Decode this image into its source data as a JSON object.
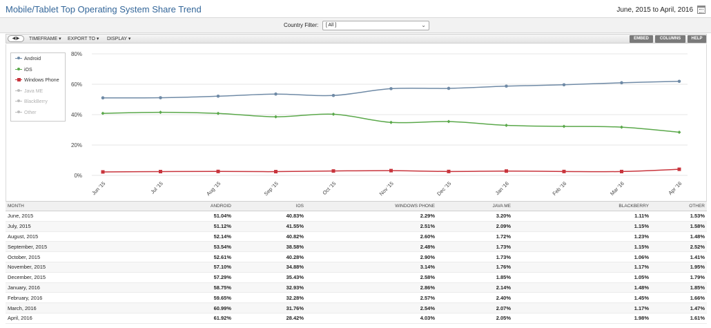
{
  "header": {
    "title": "Mobile/Tablet Top Operating System Share Trend",
    "date_range": "June, 2015 to April, 2016"
  },
  "filter": {
    "label": "Country Filter:",
    "value": "[ All ]"
  },
  "toolbar": {
    "nav": "◀|▶",
    "timeframe": "TIMEFRAME ▾",
    "export": "EXPORT TO ▾",
    "display": "DISPLAY ▾",
    "embed": "EMBED",
    "columns": "COLUMNS",
    "help": "HELP"
  },
  "colors": {
    "android": "#6f8aa6",
    "ios": "#5aa84a",
    "windows_phone": "#c8343c",
    "disabled": "#bdbdbd",
    "grid": "#e6e6e6"
  },
  "chart_data": {
    "type": "line",
    "title": "",
    "xlabel": "",
    "ylabel": "",
    "ylim": [
      0,
      80
    ],
    "yticks": [
      "0%",
      "20%",
      "40%",
      "60%",
      "80%"
    ],
    "categories": [
      "Jun '15",
      "Jul '15",
      "Aug '15",
      "Sep '15",
      "Oct '15",
      "Nov '15",
      "Dec '15",
      "Jan '16",
      "Feb '16",
      "Mar '16",
      "Apr '16"
    ],
    "series": [
      {
        "name": "Android",
        "color": "#6f8aa6",
        "marker": "circle",
        "visible": true,
        "values": [
          51.04,
          51.12,
          52.14,
          53.54,
          52.61,
          57.1,
          57.29,
          58.75,
          59.65,
          60.99,
          61.92
        ]
      },
      {
        "name": "iOS",
        "color": "#5aa84a",
        "marker": "diamond",
        "visible": true,
        "values": [
          40.83,
          41.55,
          40.82,
          38.58,
          40.28,
          34.88,
          35.43,
          32.93,
          32.28,
          31.76,
          28.42
        ]
      },
      {
        "name": "Windows Phone",
        "color": "#c8343c",
        "marker": "square",
        "visible": true,
        "values": [
          2.29,
          2.51,
          2.6,
          2.48,
          2.9,
          3.14,
          2.58,
          2.86,
          2.57,
          2.54,
          4.03
        ]
      },
      {
        "name": "Java ME",
        "color": "#bdbdbd",
        "marker": "diamond",
        "visible": false,
        "values": [
          3.2,
          2.09,
          1.72,
          1.73,
          1.73,
          1.76,
          1.85,
          2.14,
          2.4,
          2.07,
          2.05
        ]
      },
      {
        "name": "BlackBerry",
        "color": "#bdbdbd",
        "marker": "diamond",
        "visible": false,
        "values": [
          1.11,
          1.15,
          1.23,
          1.15,
          1.06,
          1.17,
          1.05,
          1.48,
          1.45,
          1.17,
          1.98
        ]
      },
      {
        "name": "Other",
        "color": "#bdbdbd",
        "marker": "circle",
        "visible": false,
        "values": [
          1.53,
          1.58,
          1.48,
          2.52,
          1.41,
          1.95,
          1.79,
          1.85,
          1.66,
          1.47,
          1.61
        ]
      }
    ],
    "legend": "top-left",
    "grid": true
  },
  "table": {
    "columns": [
      "MONTH",
      "ANDROID",
      "IOS",
      "WINDOWS PHONE",
      "JAVA ME",
      "BLACKBERRY",
      "OTHER"
    ],
    "rows": [
      [
        "June, 2015",
        "51.04%",
        "40.83%",
        "2.29%",
        "3.20%",
        "1.11%",
        "1.53%"
      ],
      [
        "July, 2015",
        "51.12%",
        "41.55%",
        "2.51%",
        "2.09%",
        "1.15%",
        "1.58%"
      ],
      [
        "August, 2015",
        "52.14%",
        "40.82%",
        "2.60%",
        "1.72%",
        "1.23%",
        "1.48%"
      ],
      [
        "September, 2015",
        "53.54%",
        "38.58%",
        "2.48%",
        "1.73%",
        "1.15%",
        "2.52%"
      ],
      [
        "October, 2015",
        "52.61%",
        "40.28%",
        "2.90%",
        "1.73%",
        "1.06%",
        "1.41%"
      ],
      [
        "November, 2015",
        "57.10%",
        "34.88%",
        "3.14%",
        "1.76%",
        "1.17%",
        "1.95%"
      ],
      [
        "December, 2015",
        "57.29%",
        "35.43%",
        "2.58%",
        "1.85%",
        "1.05%",
        "1.79%"
      ],
      [
        "January, 2016",
        "58.75%",
        "32.93%",
        "2.86%",
        "2.14%",
        "1.48%",
        "1.85%"
      ],
      [
        "February, 2016",
        "59.65%",
        "32.28%",
        "2.57%",
        "2.40%",
        "1.45%",
        "1.66%"
      ],
      [
        "March, 2016",
        "60.99%",
        "31.76%",
        "2.54%",
        "2.07%",
        "1.17%",
        "1.47%"
      ],
      [
        "April, 2016",
        "61.92%",
        "28.42%",
        "4.03%",
        "2.05%",
        "1.98%",
        "1.61%"
      ]
    ]
  }
}
